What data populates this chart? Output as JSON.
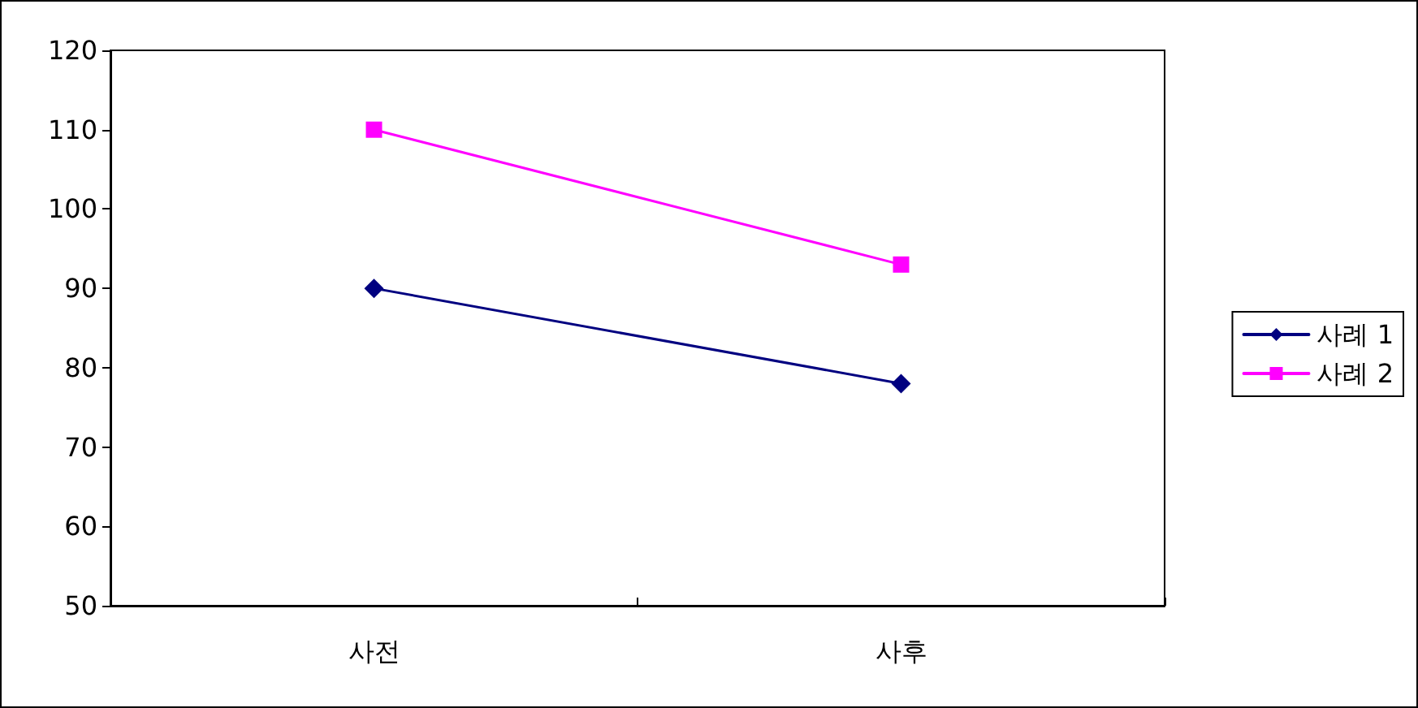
{
  "chart_data": {
    "type": "line",
    "categories": [
      "사전",
      "사후"
    ],
    "series": [
      {
        "name": "사례 1",
        "color": "#000080",
        "values": [
          90,
          78
        ],
        "marker": "diamond"
      },
      {
        "name": "사례 2",
        "color": "#ff00ff",
        "values": [
          110,
          93
        ],
        "marker": "square"
      }
    ],
    "ylim": [
      50,
      120
    ],
    "yticks": [
      50,
      60,
      70,
      80,
      90,
      100,
      110,
      120
    ],
    "grid": false,
    "legend": "right",
    "line_style": "solid"
  }
}
